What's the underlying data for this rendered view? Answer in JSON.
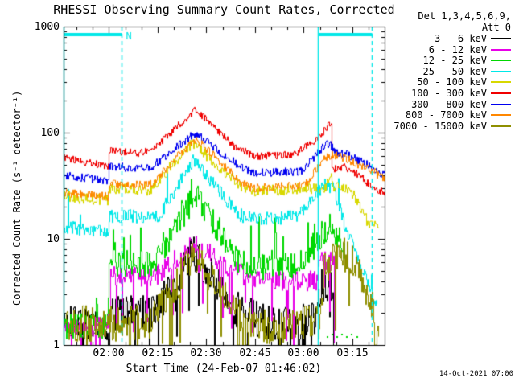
{
  "ui": {
    "title": "RHESSI Observing Summary Count Rates, Corrected",
    "timestamp": "14-Oct-2021 07:00",
    "legend": {
      "header_line1": "Det 1,3,4,5,6,9,",
      "header_line2": "Att 0"
    },
    "night_label": "N"
  },
  "chart_data": {
    "type": "line",
    "title": "RHESSI Observing Summary Count Rates, Corrected",
    "xlabel": "Start Time (24-Feb-07 01:46:02)",
    "ylabel": "Corrected Count Rate (s⁻¹ detector⁻¹)",
    "grid": false,
    "legend_position": "right-outside",
    "x_axis": {
      "start_time": "01:46:02",
      "total_minutes": 98.9,
      "tick_labels": [
        "02:00",
        "02:15",
        "02:30",
        "02:45",
        "03:00",
        "03:15"
      ],
      "tick_minutes": [
        13.97,
        28.97,
        43.97,
        58.97,
        73.97,
        88.97
      ],
      "minor_tick_start_min": 3.97,
      "minor_tick_step_min": 5
    },
    "y_axis": {
      "scale": "log",
      "range": [
        1,
        1000
      ],
      "tick_labels": [
        "1",
        "10",
        "100",
        "1000"
      ],
      "tick_values": [
        1,
        10,
        100,
        1000
      ]
    },
    "night_intervals": [
      {
        "start_min": 0.0,
        "end_min": 17.8,
        "label": "N"
      },
      {
        "start_min": 78.35,
        "end_min": 95.0,
        "label": ""
      }
    ],
    "night_color": "#00E8E8",
    "series": [
      {
        "label": "3 - 6 keV",
        "color": "#000000",
        "noise": 0.17,
        "spike_down": 0.08,
        "spike_up": 0,
        "points": [
          [
            0,
            1.6
          ],
          [
            13.6,
            1.6
          ],
          [
            13.9,
            2.0
          ],
          [
            27.5,
            2.0
          ],
          [
            39.9,
            7.5
          ],
          [
            52.8,
            2.2
          ],
          [
            62.2,
            1.6
          ],
          [
            77.6,
            1.7
          ],
          [
            79.1,
            3.5
          ],
          [
            82.6,
            3.8
          ],
          [
            83.0,
            1.1
          ]
        ]
      },
      {
        "label": "6 - 12 keV",
        "color": "#E800E8",
        "noise": 0.1,
        "spike_down": 0.06,
        "spike_up": 0,
        "points": [
          [
            0,
            1.5
          ],
          [
            13.6,
            1.5
          ],
          [
            13.7,
            4.6
          ],
          [
            27.5,
            4.3
          ],
          [
            39.9,
            9
          ],
          [
            53.6,
            4.8
          ],
          [
            57.3,
            4.2
          ],
          [
            77.6,
            4.0
          ],
          [
            79.6,
            6.5
          ],
          [
            82.1,
            6.0
          ],
          [
            83.1,
            5.5
          ],
          [
            83.3,
            1.0
          ]
        ]
      },
      {
        "label": "12 - 25 keV",
        "color": "#00D800",
        "noise": 0.13,
        "spike_down": 0,
        "spike_up": 0.05,
        "points": [
          [
            0,
            1.5
          ],
          [
            13.6,
            1.5
          ],
          [
            13.7,
            6.0
          ],
          [
            27.5,
            5.8
          ],
          [
            40.4,
            26
          ],
          [
            53.6,
            6.2
          ],
          [
            57.3,
            5.5
          ],
          [
            72.2,
            5.6
          ],
          [
            78.4,
            10
          ],
          [
            81.6,
            14
          ],
          [
            84.6,
            10
          ],
          [
            86.3,
            7
          ]
        ]
      },
      {
        "label": "25 - 50 keV",
        "color": "#00E8E8",
        "noise": 0.065,
        "spike_down": 0,
        "spike_up": 0.02,
        "points": [
          [
            0,
            13
          ],
          [
            13.6,
            11.5
          ],
          [
            13.7,
            16.5
          ],
          [
            28.8,
            16
          ],
          [
            39.9,
            55
          ],
          [
            53.6,
            17
          ],
          [
            57.3,
            15.5
          ],
          [
            71.7,
            16
          ],
          [
            77.1,
            26
          ],
          [
            80.6,
            33
          ],
          [
            83.1,
            29
          ],
          [
            87,
            12
          ],
          [
            90.7,
            6
          ],
          [
            93.2,
            4
          ],
          [
            96.5,
            2.2
          ]
        ]
      },
      {
        "label": "50 - 100 keV",
        "color": "#D8D800",
        "noise": 0.055,
        "spike_down": 0,
        "spike_up": 0,
        "points": [
          [
            0,
            25
          ],
          [
            13.6,
            23
          ],
          [
            13.7,
            30
          ],
          [
            26.3,
            29
          ],
          [
            39.4,
            80
          ],
          [
            54.8,
            31
          ],
          [
            57.8,
            28
          ],
          [
            77.1,
            30
          ],
          [
            80.6,
            31
          ],
          [
            82.1,
            40
          ],
          [
            83.1,
            31
          ],
          [
            85,
            33
          ],
          [
            89.5,
            25
          ],
          [
            93.2,
            15
          ],
          [
            96.9,
            12
          ]
        ]
      },
      {
        "label": "100 - 300 keV",
        "color": "#F00000",
        "noise": 0.035,
        "spike_down": 0,
        "spike_up": 0,
        "points": [
          [
            0,
            58
          ],
          [
            13.6,
            48
          ],
          [
            13.7,
            68
          ],
          [
            22.6,
            64
          ],
          [
            27.5,
            70
          ],
          [
            40.4,
            165
          ],
          [
            52.3,
            75
          ],
          [
            58.5,
            60
          ],
          [
            70.9,
            62
          ],
          [
            77.1,
            85
          ],
          [
            80.8,
            110
          ],
          [
            82.3,
            128
          ],
          [
            82.5,
            45
          ],
          [
            85.8,
            48
          ],
          [
            90.7,
            40
          ],
          [
            95.2,
            30
          ],
          [
            98.9,
            27
          ]
        ]
      },
      {
        "label": "300 - 800 keV",
        "color": "#0000F0",
        "noise": 0.04,
        "spike_down": 0,
        "spike_up": 0,
        "points": [
          [
            0,
            40
          ],
          [
            13.6,
            35
          ],
          [
            13.7,
            48
          ],
          [
            26.3,
            46
          ],
          [
            40.4,
            100
          ],
          [
            54.8,
            46
          ],
          [
            58.5,
            42
          ],
          [
            73.4,
            43
          ],
          [
            78.4,
            68
          ],
          [
            81.6,
            80
          ],
          [
            83.5,
            66
          ],
          [
            87,
            62
          ],
          [
            93.2,
            50
          ],
          [
            98.9,
            39
          ]
        ]
      },
      {
        "label": "800 - 7000 keV",
        "color": "#FF8700",
        "noise": 0.04,
        "spike_down": 0,
        "spike_up": 0,
        "points": [
          [
            0,
            27
          ],
          [
            13.6,
            25
          ],
          [
            13.7,
            33
          ],
          [
            26.3,
            32
          ],
          [
            40.4,
            88
          ],
          [
            54.8,
            34
          ],
          [
            57.8,
            30
          ],
          [
            74.1,
            32
          ],
          [
            79.6,
            55
          ],
          [
            82.6,
            62
          ],
          [
            86.5,
            58
          ],
          [
            93.2,
            46
          ],
          [
            98.9,
            37
          ]
        ]
      },
      {
        "label": "7000 - 15000 keV",
        "color": "#8F8F00",
        "noise": 0.17,
        "spike_down": 0.06,
        "spike_up": 0,
        "points": [
          [
            0,
            1.6
          ],
          [
            26.3,
            1.6
          ],
          [
            39.9,
            7.0
          ],
          [
            53.6,
            2.0
          ],
          [
            62.2,
            1.5
          ],
          [
            78.4,
            1.6
          ],
          [
            80.1,
            5.0
          ],
          [
            84,
            7.5
          ],
          [
            88.3,
            6.5
          ],
          [
            93.2,
            3.2
          ],
          [
            95,
            2.5
          ],
          [
            95.7,
            1.3
          ],
          [
            96.9,
            1.1
          ]
        ]
      }
    ],
    "sparse_points": [
      {
        "series": "12 - 25 keV",
        "color": "#00D800",
        "points": [
          [
            81,
            1.2
          ],
          [
            82.5,
            1.25
          ],
          [
            84,
            1.2
          ],
          [
            85.5,
            1.25
          ],
          [
            87,
            1.2
          ],
          [
            88.5,
            1.25
          ],
          [
            90.2,
            1.2
          ]
        ]
      }
    ]
  }
}
